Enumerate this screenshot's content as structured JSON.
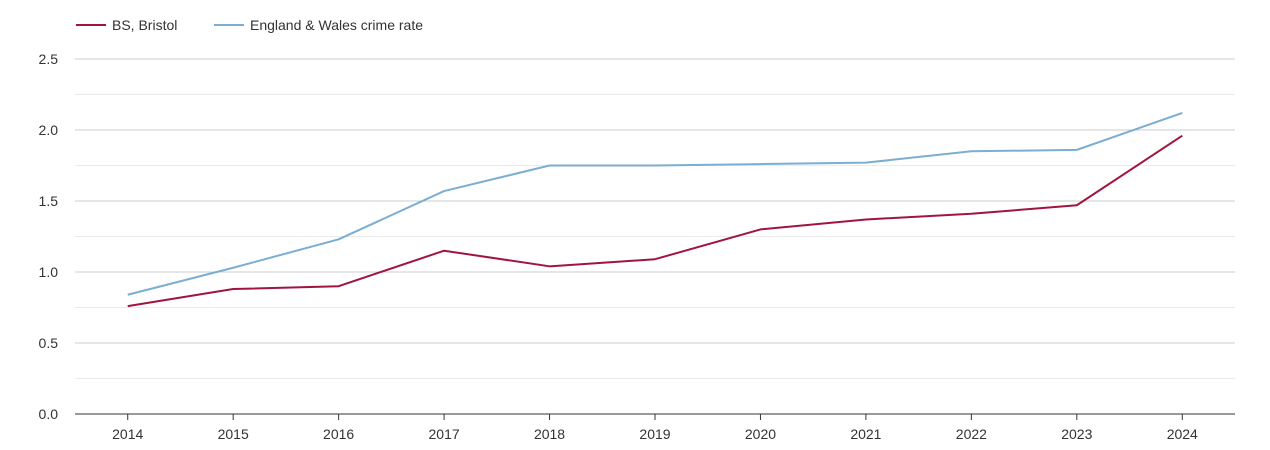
{
  "chart_data": {
    "type": "line",
    "title": "",
    "xlabel": "",
    "ylabel": "",
    "x": [
      "2014",
      "2015",
      "2016",
      "2017",
      "2018",
      "2019",
      "2020",
      "2021",
      "2022",
      "2023",
      "2024"
    ],
    "ylim": [
      0,
      2.5
    ],
    "yticks": [
      "0.0",
      "0.5",
      "1.0",
      "1.5",
      "2.0",
      "2.5"
    ],
    "grid": true,
    "legend_position": "top-left",
    "series": [
      {
        "name": "BS, Bristol",
        "color": "#a0153e",
        "values": [
          0.76,
          0.88,
          0.9,
          1.15,
          1.04,
          1.09,
          1.3,
          1.37,
          1.41,
          1.47,
          1.96
        ]
      },
      {
        "name": "England & Wales crime rate",
        "color": "#7aaed2",
        "values": [
          0.84,
          1.03,
          1.23,
          1.57,
          1.75,
          1.75,
          1.76,
          1.77,
          1.85,
          1.86,
          2.12
        ]
      }
    ]
  }
}
